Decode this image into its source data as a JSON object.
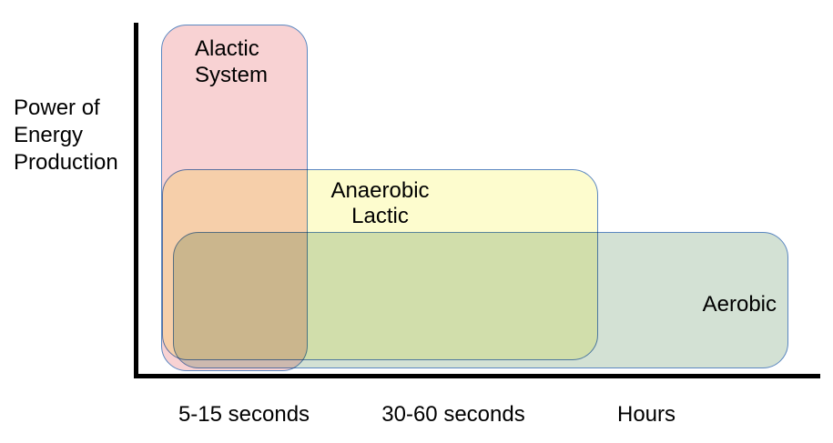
{
  "figure": {
    "y_axis_label_lines": [
      "Power of",
      "Energy",
      "Production"
    ],
    "x_axis_labels": [
      "5-15 seconds",
      "30-60 seconds",
      "Hours"
    ],
    "systems": [
      {
        "name": "Alactic System",
        "label_lines": [
          "Alactic",
          "System"
        ],
        "fill": "#F8D2D3"
      },
      {
        "name": "Anaerobic Lactic",
        "label_lines": [
          "Anaerobic",
          "Lactic"
        ],
        "fill": "#FDFCCE"
      },
      {
        "name": "Aerobic",
        "label_lines": [
          "Aerobic"
        ],
        "fill": "#D3E1D4"
      }
    ],
    "colors": {
      "box_border": "#5B87C0",
      "axis": "#000000",
      "text": "#000000",
      "overlap_pink_yellow": "#FAD9A7",
      "overlap_yellow_green": "#C6D49E",
      "overlap_triple": "#C0B47E"
    }
  }
}
